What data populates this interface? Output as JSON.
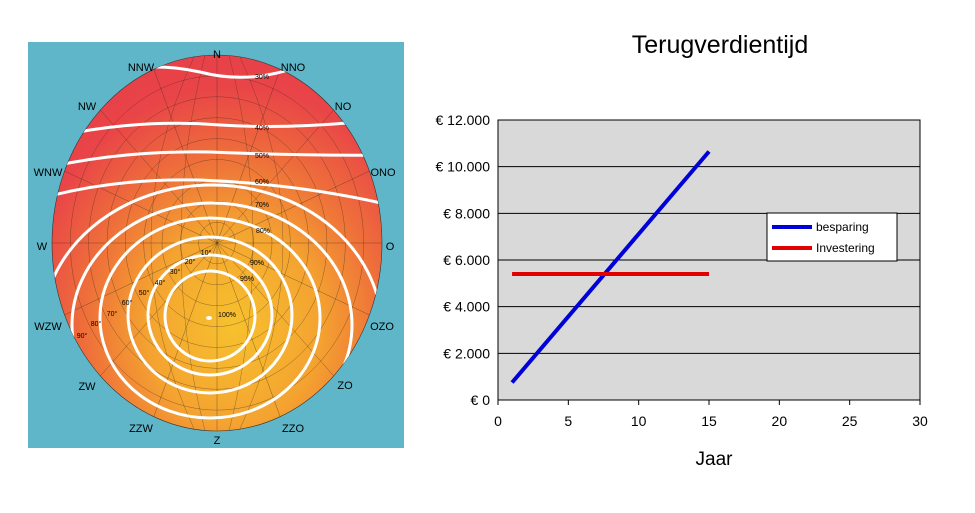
{
  "diagram": {
    "directions": [
      "N",
      "NNO",
      "NO",
      "ONO",
      "O",
      "OZO",
      "ZO",
      "ZZO",
      "Z",
      "ZZW",
      "ZW",
      "WZW",
      "W",
      "WNW",
      "NW",
      "NNW"
    ],
    "percent_labels": [
      "30%",
      "40%",
      "50%",
      "60%",
      "70%",
      "80%",
      "90%",
      "95%",
      "100%"
    ],
    "angle_labels": [
      "10°",
      "20°",
      "30°",
      "40°",
      "50°",
      "60°",
      "70°",
      "80°",
      "90°"
    ],
    "colors": {
      "background": "#5fb6c8",
      "outer": "#e8404a",
      "inner": "#f5b830",
      "contour": "#ffffff"
    }
  },
  "chart_data": {
    "type": "line",
    "title": "Terugverdientijd",
    "xlabel": "Jaar",
    "ylabel": "",
    "xlim": [
      0,
      30
    ],
    "ylim": [
      0,
      12000
    ],
    "x_ticks": [
      "0",
      "5",
      "10",
      "15",
      "20",
      "25",
      "30"
    ],
    "y_ticks": [
      "€ 0",
      "€ 2.000",
      "€ 4.000",
      "€ 6.000",
      "€ 8.000",
      "€ 10.000",
      "€ 12.000"
    ],
    "grid": true,
    "legend": "right",
    "plot_background": "#d9d9d9",
    "series": [
      {
        "name": "besparing",
        "color": "#0000d8",
        "x": [
          1,
          15
        ],
        "y": [
          750,
          10650
        ]
      },
      {
        "name": "Investering",
        "color": "#e00000",
        "x": [
          1,
          15
        ],
        "y": [
          5400,
          5400
        ]
      }
    ]
  }
}
